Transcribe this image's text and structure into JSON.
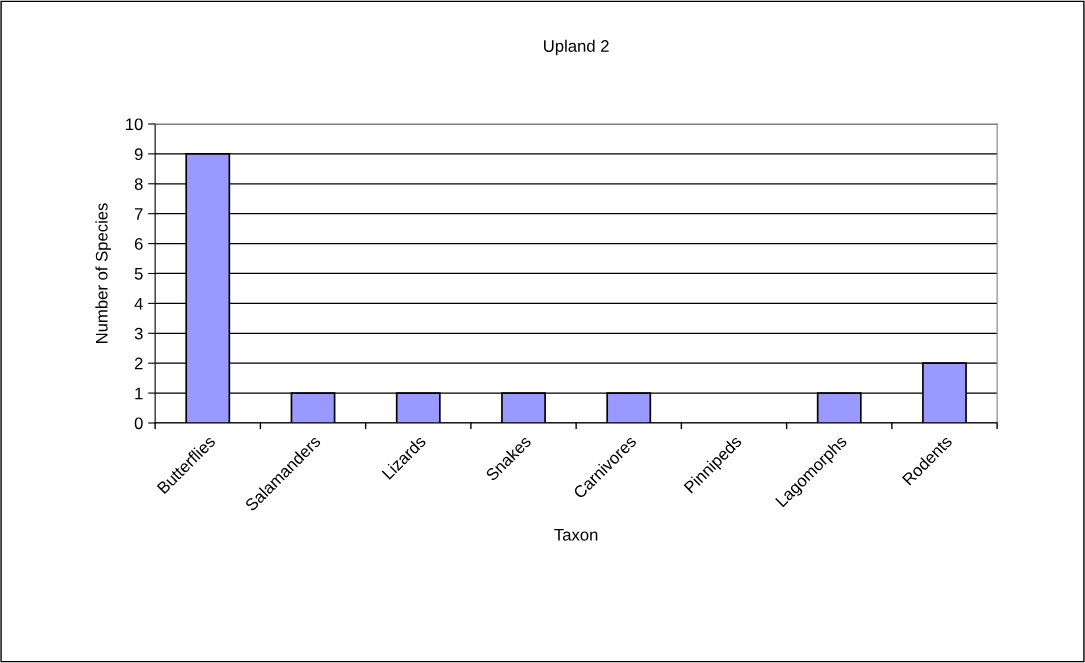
{
  "chart_data": {
    "type": "bar",
    "title": "Upland 2",
    "xlabel": "Taxon",
    "ylabel": "Number of Species",
    "categories": [
      "Butterflies",
      "Salamanders",
      "Lizards",
      "Snakes",
      "Carnivores",
      "Pinnipeds",
      "Lagomorphs",
      "Rodents"
    ],
    "values": [
      9,
      1,
      1,
      1,
      1,
      0,
      1,
      2
    ],
    "color": "#9999ff",
    "ylim": [
      0,
      10
    ],
    "yticks": [
      0,
      1,
      2,
      3,
      4,
      5,
      6,
      7,
      8,
      9,
      10
    ],
    "grid": "y",
    "legend": false
  }
}
